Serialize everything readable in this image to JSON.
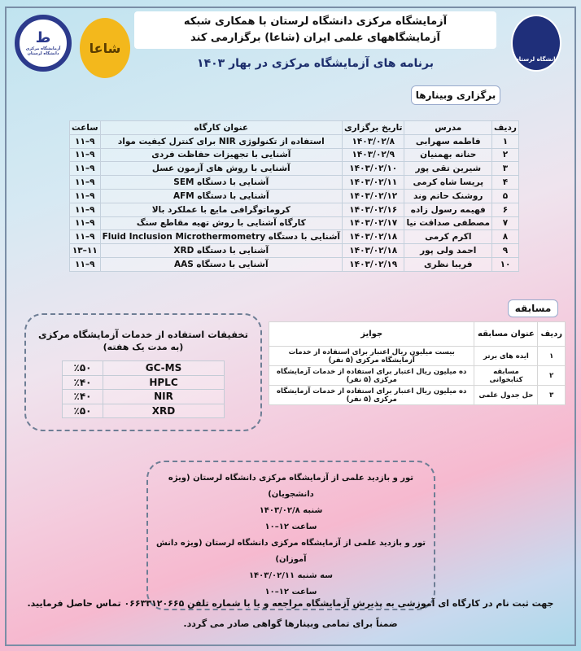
{
  "header": {
    "line1": "آزمایشگاه مرکزی دانشگاه لرستان با همکاری شبکه",
    "line2": "آزمایشگاههای علمی ایران (شاعا) برگزارمی کند",
    "subtitle": "برنامه های آزمایشگاه مرکزی در بهار ۱۴۰۳",
    "logo_right_text": "دانشگاه لرستان",
    "logo_left_text": "آزمایشگاه مرکزی دانشگاه لرستان",
    "logo_middle_text": "شاعا"
  },
  "webinars": {
    "section_title": "برگزاری وبینارها",
    "headers": [
      "ردیف",
      "مدرس",
      "تاریخ برگزاری",
      "عنوان کارگاه",
      "ساعت"
    ],
    "rows": [
      [
        "۱",
        "فاطمه سهرابی",
        "۱۴۰۳/۰۲/۸",
        "استفاده از تکنولوژی NIR برای کنترل کیفیت مواد",
        "۹–۱۱"
      ],
      [
        "۲",
        "حنانه بهمنیان",
        "۱۴۰۳/۰۲/۹",
        "آشنایی با تجهیزات حفاظت فردی",
        "۹–۱۱"
      ],
      [
        "۳",
        "شیرین تقی پور",
        "۱۴۰۳/۰۲/۱۰",
        "آشنایی با روش های آزمون عسل",
        "۹–۱۱"
      ],
      [
        "۴",
        "پریسا شاه کرمی",
        "۱۴۰۳/۰۲/۱۱",
        "آشنایی با دستگاه SEM",
        "۹–۱۱"
      ],
      [
        "۵",
        "روشنک حاتم وند",
        "۱۴۰۳/۰۲/۱۲",
        "آشنایی با دستگاه AFM",
        "۹–۱۱"
      ],
      [
        "۶",
        "فهیمه رسول زاده",
        "۱۴۰۳/۰۲/۱۶",
        "کروماتوگرافی مایع با عملکرد بالا",
        "۹–۱۱"
      ],
      [
        "۷",
        "مصطفی صداقت نیا",
        "۱۴۰۳/۰۲/۱۷",
        "کارگاه آشنایی با روش تهیه مقاطع سنگ",
        "۹–۱۱"
      ],
      [
        "۸",
        "اکرم کرمی",
        "۱۴۰۳/۰۲/۱۸",
        "آشنایی با دستگاه Fluid Inclusion Microthermometry",
        "۹–۱۱"
      ],
      [
        "۹",
        "احمد ولی پور",
        "۱۴۰۳/۰۲/۱۸",
        "آشنایی با دستگاه XRD",
        "۱۱–۱۳"
      ],
      [
        "۱۰",
        "فریبا نظری",
        "۱۴۰۳/۰۲/۱۹",
        "آشنایی با دستگاه AAS",
        "۹–۱۱"
      ]
    ]
  },
  "competition": {
    "section_title": "مسابقه",
    "headers": [
      "ردیف",
      "عنوان مسابقه",
      "جوایز"
    ],
    "rows": [
      [
        "۱",
        "ایده های برتر",
        "بیست میلیون ریال اعتبار برای استفاده از خدمات آزمایشگاه مرکزی (۵ نفر)"
      ],
      [
        "۲",
        "مسابقه کتابخوانی",
        "ده میلیون ریال اعتبار برای استفاده از خدمات آزمایشگاه مرکزی (۵ نفر)"
      ],
      [
        "۳",
        "حل جدول علمی",
        "ده میلیون ریال اعتبار برای استفاده از خدمات آزمایشگاه مرکزی (۵ نفر)"
      ]
    ]
  },
  "discounts": {
    "title": "تخفیفات استفاده از خدمات آزمایشگاه مرکزی",
    "subtitle": "(به مدت یک هفته)",
    "rows": [
      [
        "GC-MS",
        "٪۵۰"
      ],
      [
        "HPLC",
        "٪۴۰"
      ],
      [
        "NIR",
        "٪۴۰"
      ],
      [
        "XRD",
        "٪۵۰"
      ]
    ]
  },
  "tours": [
    "تور و بازدید علمی از آزمایشگاه مرکزی دانشگاه لرستان (ویژه دانشجویان)",
    "شنبه ۱۴۰۳/۰۲/۸",
    "ساعت ۱۲–۱۰",
    "تور و بازدید علمی از آزمایشگاه مرکزی دانشگاه لرستان (ویژه دانش آموزان)",
    "سه شنبه ۱۴۰۳/۰۲/۱۱",
    "ساعت ۱۲–۱۰"
  ],
  "footer": {
    "line1": "جهت ثبت نام در کارگاه ای آموزشی به پذیرش آزمایشگاه مراجعه و یا با شماره تلفن ۰۶۶۳۳۱۲۰۶۶۵ تماس حاصل فرمایید.",
    "line2": "ضمناً برای تمامی وبینارها گواهی صادر می گردد."
  },
  "colors": {
    "title_blue": "#1b2c6b",
    "logo_navy": "#1f2f7a",
    "logo_gold": "#f3b81c"
  }
}
